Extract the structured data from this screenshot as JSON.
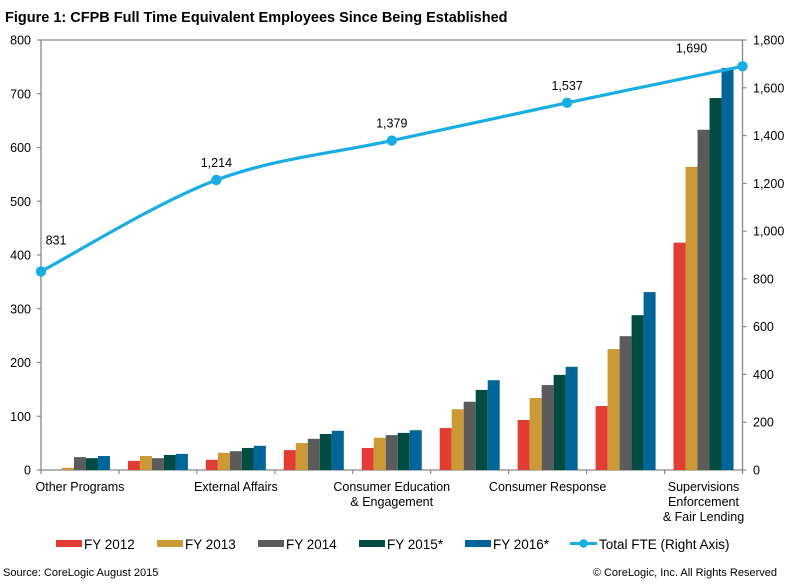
{
  "title": "Figure 1: CFPB Full Time Equivalent Employees Since Being Established",
  "footer": {
    "source": "Source: CoreLogic August 2015",
    "copyright": "© CoreLogic, Inc. All Rights Reserved"
  },
  "colors": {
    "axis": "#878787",
    "fy2012": "#E23D35",
    "fy2013": "#CB9A37",
    "fy2014": "#5B5B5B",
    "fy2015": "#004C42",
    "fy2016": "#006699",
    "total_fte_line": "#1AADE4"
  },
  "chart_data": {
    "type": "bar",
    "combo": "clustered bar with line on secondary axis",
    "title": "Figure 1: CFPB Full Time Equivalent Employees Since Being Established",
    "xlabel": "",
    "ylabel": "",
    "categories": [
      "Other Programs",
      "",
      "External Affairs",
      "",
      "Consumer Education & Engagement",
      "",
      "Consumer Response",
      "",
      "Supervisions Enforcement & Fair Lending"
    ],
    "category_label_lines": [
      [
        "Other Programs"
      ],
      [],
      [
        "External Affairs"
      ],
      [],
      [
        "Consumer Education",
        "& Engagement"
      ],
      [],
      [
        "Consumer Response"
      ],
      [],
      [
        "Supervisions",
        "Enforcement",
        "& Fair Lending"
      ]
    ],
    "series": [
      {
        "name": "FY 2012",
        "type": "bar",
        "axis": "left",
        "color": "#E23D35",
        "values": [
          0,
          17,
          19,
          37,
          41,
          78,
          93,
          119,
          423
        ]
      },
      {
        "name": "FY 2013",
        "type": "bar",
        "axis": "left",
        "color": "#CB9A37",
        "values": [
          4,
          26,
          32,
          50,
          60,
          113,
          134,
          225,
          564
        ]
      },
      {
        "name": "FY 2014",
        "type": "bar",
        "axis": "left",
        "color": "#5B5B5B",
        "values": [
          24,
          22,
          35,
          58,
          65,
          127,
          158,
          249,
          633
        ]
      },
      {
        "name": "FY 2015*",
        "type": "bar",
        "axis": "left",
        "color": "#004C42",
        "values": [
          22,
          28,
          41,
          67,
          69,
          149,
          177,
          288,
          692
        ]
      },
      {
        "name": "FY 2016*",
        "type": "bar",
        "axis": "left",
        "color": "#006699",
        "values": [
          26,
          30,
          45,
          73,
          74,
          167,
          192,
          331,
          748
        ]
      }
    ],
    "line_series": {
      "name": "Total FTE (Right Axis)",
      "type": "line",
      "axis": "right",
      "smooth": true,
      "markers": true,
      "color": "#1AADE4",
      "values": [
        831,
        1214,
        1379,
        1537,
        1690
      ],
      "data_labels": [
        "831",
        "1,214",
        "1,379",
        "1,537",
        "1,690"
      ]
    },
    "y_left": {
      "range": [
        0,
        800
      ],
      "ticks": [
        0,
        100,
        200,
        300,
        400,
        500,
        600,
        700,
        800
      ],
      "tick_labels": [
        "0",
        "100",
        "200",
        "300",
        "400",
        "500",
        "600",
        "700",
        "800"
      ]
    },
    "y_right": {
      "range": [
        0,
        1800
      ],
      "ticks": [
        0,
        200,
        400,
        600,
        800,
        1000,
        1200,
        1400,
        1600,
        1800
      ],
      "tick_labels": [
        "0",
        "200",
        "400",
        "600",
        "800",
        "1,000",
        "1,200",
        "1,400",
        "1,600",
        "1,800"
      ]
    },
    "grid": false,
    "legend_position": "bottom",
    "legend": [
      "FY 2012",
      "FY 2013",
      "FY 2014",
      "FY 2015*",
      "FY 2016*",
      "Total FTE (Right Axis)"
    ]
  }
}
